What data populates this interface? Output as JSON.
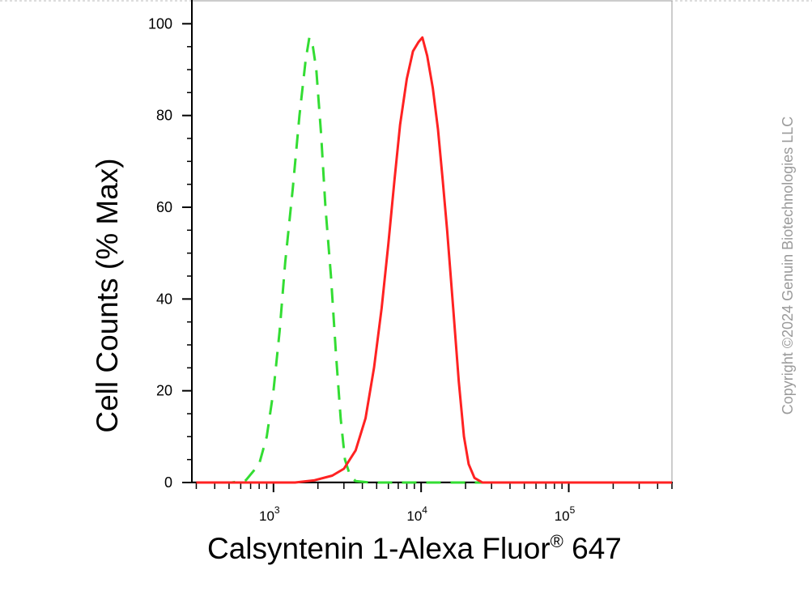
{
  "chart_data": {
    "type": "line",
    "xlabel": "Calsyntenin 1-Alexa Fluor",
    "xlabel_superscript": "®",
    "xlabel_suffix": " 647",
    "ylabel": "Cell Counts (% Max)",
    "x_scale": "log",
    "xlim": [
      280,
      500000
    ],
    "ylim": [
      0,
      105
    ],
    "y_ticks": [
      0,
      20,
      40,
      60,
      80,
      100
    ],
    "x_ticks": [
      {
        "value": 1000,
        "base": "10",
        "exp": "3"
      },
      {
        "value": 10000,
        "base": "10",
        "exp": "4"
      },
      {
        "value": 100000,
        "base": "10",
        "exp": "5"
      }
    ],
    "grid": false,
    "legend": "none",
    "series": [
      {
        "color": "#33dd33",
        "style": "dashed",
        "points": [
          [
            300,
            0
          ],
          [
            520,
            0
          ],
          [
            650,
            0.5
          ],
          [
            800,
            4
          ],
          [
            900,
            10
          ],
          [
            1000,
            20
          ],
          [
            1100,
            33
          ],
          [
            1200,
            48
          ],
          [
            1350,
            64
          ],
          [
            1500,
            80
          ],
          [
            1650,
            92
          ],
          [
            1750,
            97
          ],
          [
            1850,
            95
          ],
          [
            1950,
            90
          ],
          [
            2100,
            76
          ],
          [
            2250,
            60
          ],
          [
            2450,
            45
          ],
          [
            2650,
            28
          ],
          [
            2850,
            14
          ],
          [
            3050,
            5
          ],
          [
            3300,
            1.5
          ],
          [
            3600,
            0.3
          ],
          [
            4500,
            0
          ],
          [
            500000,
            0
          ]
        ]
      },
      {
        "color": "#ff2222",
        "style": "solid",
        "points": [
          [
            300,
            0
          ],
          [
            1400,
            0
          ],
          [
            1900,
            0.5
          ],
          [
            2500,
            1.5
          ],
          [
            3000,
            3
          ],
          [
            3600,
            7
          ],
          [
            4200,
            14
          ],
          [
            4800,
            25
          ],
          [
            5400,
            38
          ],
          [
            6000,
            52
          ],
          [
            6600,
            66
          ],
          [
            7200,
            78
          ],
          [
            8000,
            88
          ],
          [
            8800,
            94
          ],
          [
            9600,
            96
          ],
          [
            10200,
            97
          ],
          [
            11000,
            93
          ],
          [
            12000,
            86
          ],
          [
            13000,
            77
          ],
          [
            14000,
            66
          ],
          [
            15000,
            55
          ],
          [
            16500,
            38
          ],
          [
            18000,
            22
          ],
          [
            19500,
            10
          ],
          [
            21000,
            4
          ],
          [
            23000,
            1
          ],
          [
            26000,
            0
          ],
          [
            500000,
            0
          ]
        ]
      }
    ]
  },
  "watermark": "Copyright ©2024 Genuin Biotechnologies LLC"
}
